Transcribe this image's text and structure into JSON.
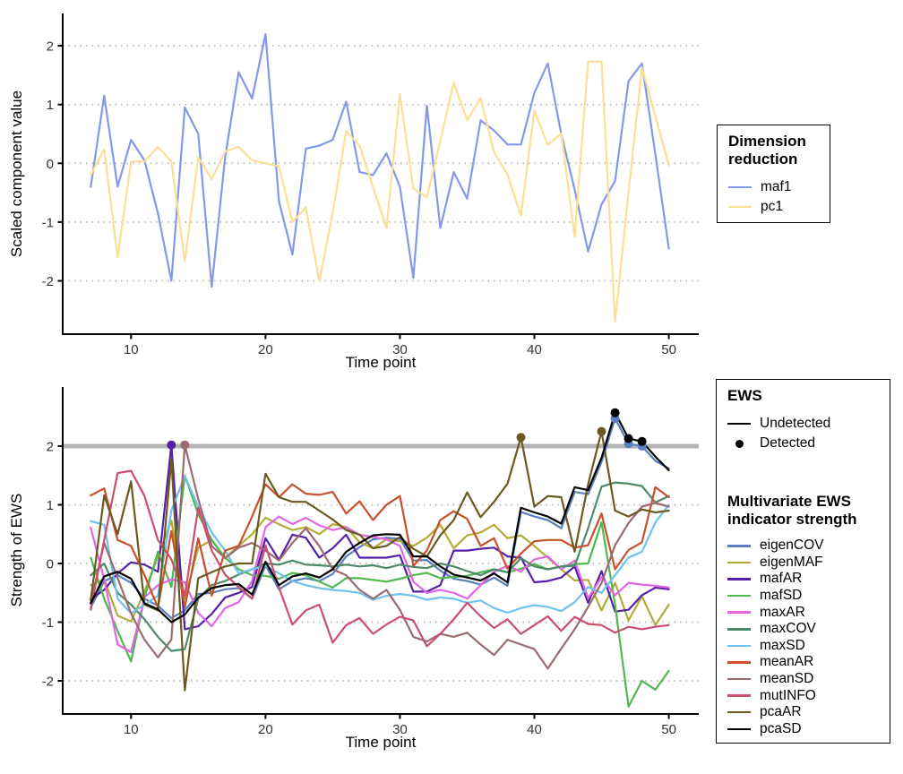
{
  "chart_data": [
    {
      "id": "dimension-reduction-timeseries",
      "type": "line",
      "xlabel": "Time point",
      "ylabel": "Scaled component value",
      "x_start": 7,
      "x_end": 50,
      "x_step": 1,
      "xticks": [
        10,
        20,
        30,
        40,
        50
      ],
      "yticks": [
        -2,
        -1,
        0,
        1,
        2
      ],
      "ylim": [
        -2.85,
        2.35
      ],
      "grid": "horizontal dotted",
      "legend_title": "Dimension reduction",
      "legend_position": "right",
      "series": [
        {
          "name": "maf1",
          "color": "#8398e8",
          "values": [
            -0.4,
            1.15,
            -0.4,
            0.4,
            0.05,
            -0.85,
            -2.0,
            0.95,
            0.5,
            -2.1,
            0.1,
            1.55,
            1.1,
            2.2,
            -0.65,
            -1.55,
            0.25,
            0.3,
            0.4,
            1.05,
            -0.15,
            -0.2,
            0.17,
            -0.4,
            -1.95,
            0.98,
            -1.1,
            -0.15,
            -0.6,
            0.73,
            0.56,
            0.32,
            0.32,
            1.2,
            1.7,
            0.5,
            -0.45,
            -1.5,
            -0.7,
            -0.3,
            1.4,
            1.7,
            0.15,
            -1.45
          ]
        },
        {
          "name": "pc1",
          "color": "#fbdf94",
          "values": [
            -0.2,
            0.24,
            -1.6,
            0.03,
            0.03,
            0.28,
            0.03,
            -1.67,
            0.1,
            -0.27,
            0.2,
            0.28,
            0.05,
            0.0,
            -0.05,
            -1.0,
            -0.75,
            -2.0,
            -0.85,
            0.55,
            0.3,
            -0.4,
            -1.1,
            1.18,
            -0.43,
            -0.58,
            0.38,
            1.37,
            0.73,
            1.11,
            0.19,
            -0.19,
            -0.89,
            0.9,
            0.31,
            0.51,
            -1.25,
            1.73,
            1.73,
            -2.7,
            -0.5,
            1.63,
            0.8,
            -0.03
          ]
        }
      ]
    },
    {
      "id": "multivariate-ews-strength",
      "type": "line",
      "xlabel": "Time point",
      "ylabel": "Strength of EWS",
      "x_start": 7,
      "x_end": 50,
      "x_step": 1,
      "xticks": [
        10,
        20,
        30,
        40,
        50
      ],
      "yticks": [
        -2,
        -1,
        0,
        1,
        2
      ],
      "ylim": [
        -2.75,
        2.85
      ],
      "grid": "horizontal dotted",
      "threshold": {
        "y": 2,
        "color": "#b3b3b3"
      },
      "legend_title": "Multivariate EWS indicator strength",
      "ews_legend": {
        "title": "EWS",
        "undetected_label": "Undetected",
        "detected_label": "Detected"
      },
      "series": [
        {
          "name": "eigenCOV",
          "color": "#5b7fc0",
          "detected": [
            46,
            47,
            48
          ],
          "values": [
            -0.75,
            -0.3,
            -0.2,
            -0.33,
            -0.6,
            -0.72,
            -0.93,
            -0.8,
            -0.52,
            -0.5,
            -0.44,
            -0.42,
            -0.6,
            -0.03,
            -0.44,
            -0.3,
            -0.25,
            -0.3,
            -0.18,
            0.12,
            0.28,
            0.41,
            0.44,
            0.42,
            0.05,
            0.06,
            -0.12,
            -0.26,
            -0.3,
            -0.36,
            -0.24,
            -0.38,
            0.88,
            0.8,
            0.74,
            0.6,
            1.22,
            1.18,
            1.73,
            2.47,
            2.04,
            2.0,
            1.75,
            1.62
          ]
        },
        {
          "name": "eigenMAF",
          "color": "#b3ab38",
          "detected": [],
          "values": [
            -0.37,
            -0.27,
            -0.89,
            -0.99,
            -0.48,
            0.12,
            0.73,
            -0.6,
            0.27,
            0.4,
            0.1,
            0.3,
            0.5,
            0.78,
            0.67,
            0.57,
            0.62,
            0.5,
            0.67,
            0.62,
            0.36,
            0.26,
            0.41,
            0.38,
            0.3,
            0.44,
            0.66,
            0.26,
            0.48,
            0.53,
            0.66,
            0.43,
            0.48,
            0.3,
            0.1,
            -0.1,
            -0.29,
            -0.28,
            -0.8,
            -0.33,
            -0.97,
            -0.56,
            -1.05,
            -0.7
          ]
        },
        {
          "name": "mafAR",
          "color": "#5520a8",
          "detected": [
            13
          ],
          "values": [
            -0.61,
            -0.45,
            -0.17,
            0.02,
            -0.02,
            -0.14,
            2.02,
            -1.12,
            -1.07,
            -0.86,
            -0.58,
            -0.5,
            -0.4,
            0.43,
            0.06,
            0.49,
            0.44,
            0.1,
            0.26,
            0.49,
            0.1,
            0.1,
            0.1,
            0.14,
            -0.48,
            -0.48,
            -0.37,
            0.22,
            0.22,
            0.25,
            0.27,
            0.12,
            0.1,
            -0.32,
            -0.3,
            -0.24,
            -0.05,
            -0.67,
            -0.13,
            -0.82,
            -0.79,
            -0.54,
            -0.41,
            -0.44
          ]
        },
        {
          "name": "mafSD",
          "color": "#4fb84f",
          "detected": [],
          "values": [
            0.1,
            -0.6,
            -1.15,
            -1.67,
            -0.58,
            0.2,
            -0.4,
            1.5,
            0.84,
            0.4,
            0.1,
            -0.1,
            -0.2,
            -0.21,
            -0.26,
            -0.16,
            -0.2,
            -0.31,
            -0.41,
            -0.25,
            -0.25,
            -0.28,
            -0.31,
            -0.26,
            -0.2,
            -0.16,
            -0.25,
            -0.23,
            -0.21,
            -0.15,
            -0.1,
            -0.15,
            -0.09,
            -0.01,
            -0.1,
            -0.05,
            -0.01,
            0.0,
            0.7,
            -0.7,
            -2.44,
            -2.0,
            -2.15,
            -1.83
          ]
        },
        {
          "name": "maxAR",
          "color": "#e266e6",
          "detected": [],
          "values": [
            0.61,
            -0.27,
            -1.38,
            -1.51,
            -0.58,
            -0.37,
            -0.27,
            -0.32,
            -0.84,
            -1.07,
            -0.76,
            -0.66,
            -0.3,
            0.62,
            0.8,
            0.67,
            0.78,
            0.65,
            0.57,
            0.62,
            0.49,
            0.45,
            0.41,
            0.3,
            -0.31,
            -0.5,
            -0.45,
            -0.5,
            -0.6,
            -0.37,
            -0.14,
            -0.04,
            -0.14,
            0.07,
            0.12,
            -0.1,
            0.05,
            -0.59,
            -0.23,
            -0.54,
            -0.33,
            -0.36,
            -0.38,
            -0.41
          ]
        },
        {
          "name": "maxCOV",
          "color": "#4e8a68",
          "detected": [],
          "values": [
            -0.2,
            0.0,
            -0.5,
            -0.7,
            -0.95,
            -1.25,
            -1.49,
            -1.46,
            -0.6,
            -0.37,
            -0.3,
            -0.19,
            -0.1,
            0.0,
            -0.02,
            0.05,
            -0.02,
            -0.03,
            -0.05,
            -0.02,
            -0.05,
            -0.03,
            -0.08,
            -0.02,
            -0.06,
            -0.08,
            0.0,
            -0.05,
            -0.13,
            -0.2,
            -0.1,
            -0.15,
            0.09,
            -0.05,
            -0.1,
            -0.05,
            -0.04,
            0.6,
            1.31,
            1.38,
            1.36,
            1.32,
            1.04,
            1.15
          ]
        },
        {
          "name": "maxSD",
          "color": "#6ec2ee",
          "detected": [],
          "values": [
            0.72,
            0.66,
            -0.6,
            -0.85,
            -0.7,
            -0.55,
            0.9,
            1.49,
            0.97,
            0.53,
            0.22,
            -0.17,
            -0.1,
            -0.04,
            -0.17,
            -0.3,
            -0.37,
            -0.42,
            -0.45,
            -0.47,
            -0.5,
            -0.62,
            -0.55,
            -0.52,
            -0.55,
            -0.62,
            -0.58,
            -0.6,
            -0.67,
            -0.63,
            -0.76,
            -0.84,
            -0.76,
            -0.71,
            -0.74,
            -0.81,
            -0.66,
            -0.4,
            -0.5,
            -0.2,
            0.1,
            0.2,
            0.7,
            1.0
          ]
        },
        {
          "name": "meanAR",
          "color": "#c8502a",
          "detected": [],
          "values": [
            1.16,
            1.28,
            0.4,
            0.3,
            -0.2,
            -0.75,
            0.55,
            -0.75,
            0.43,
            -0.55,
            0.22,
            0.3,
            0.8,
            1.35,
            1.13,
            1.35,
            1.19,
            1.17,
            1.22,
            0.85,
            1.06,
            0.74,
            1.0,
            1.15,
            -0.04,
            0.22,
            0.74,
            0.89,
            0.76,
            0.3,
            0.43,
            -0.09,
            0.17,
            0.38,
            0.4,
            0.4,
            0.27,
            0.31,
            0.85,
            -0.1,
            0.23,
            0.36,
            1.3,
            1.13
          ]
        },
        {
          "name": "meanSD",
          "color": "#9c6b70",
          "detected": [
            14
          ],
          "values": [
            -0.68,
            0.35,
            -0.25,
            -0.85,
            -1.3,
            -1.6,
            -1.3,
            2.02,
            1.1,
            0.3,
            0.09,
            0.27,
            0.35,
            0.22,
            0.05,
            0.35,
            0.6,
            0.3,
            -0.1,
            -0.2,
            -0.45,
            -0.6,
            -0.45,
            -0.79,
            -1.25,
            -1.33,
            -1.2,
            -1.25,
            -1.18,
            -1.38,
            -1.56,
            -1.3,
            -1.38,
            -1.46,
            -1.79,
            -1.45,
            -1.12,
            -0.74,
            -0.33,
            0.31,
            0.69,
            0.97,
            1.03,
            0.97
          ]
        },
        {
          "name": "mutINFO",
          "color": "#cb4f6e",
          "detected": [],
          "values": [
            -0.79,
            0.4,
            1.54,
            1.58,
            1.15,
            0.4,
            0.07,
            -0.55,
            0.95,
            0.22,
            -0.19,
            -0.4,
            -0.6,
            0.31,
            -0.41,
            -1.04,
            -0.8,
            -0.7,
            -1.35,
            -1.05,
            -0.93,
            -1.2,
            -1.04,
            -0.91,
            -0.97,
            -1.41,
            -1.2,
            -0.95,
            -0.67,
            -0.9,
            -1.1,
            -0.95,
            -1.2,
            -1.05,
            -0.9,
            -1.15,
            -0.91,
            -1.03,
            -1.05,
            -1.18,
            -1.08,
            -1.12,
            -1.08,
            -1.05
          ]
        },
        {
          "name": "pcaAR",
          "color": "#6a5a22",
          "detected": [
            39,
            45
          ],
          "values": [
            -0.63,
            1.16,
            0.5,
            1.4,
            -0.7,
            -0.8,
            1.78,
            -2.16,
            -0.25,
            -0.15,
            -0.05,
            0.0,
            0.0,
            1.53,
            1.13,
            1.05,
            1.05,
            0.9,
            0.75,
            0.57,
            0.49,
            0.26,
            0.3,
            0.45,
            0.25,
            0.12,
            0.48,
            0.74,
            1.21,
            0.79,
            1.05,
            1.36,
            2.15,
            0.97,
            1.15,
            1.13,
            0.2,
            1.35,
            2.25,
            0.9,
            0.8,
            0.92,
            0.87,
            0.9
          ]
        },
        {
          "name": "pcaSD",
          "color": "#000000",
          "detected": [
            46,
            47,
            48
          ],
          "values": [
            -0.68,
            -0.22,
            -0.14,
            -0.26,
            -0.68,
            -0.78,
            -1.0,
            -0.87,
            -0.58,
            -0.42,
            -0.37,
            -0.35,
            -0.53,
            0.03,
            -0.37,
            -0.22,
            -0.17,
            -0.24,
            -0.1,
            0.2,
            0.35,
            0.48,
            0.5,
            0.49,
            0.12,
            0.12,
            -0.05,
            -0.19,
            -0.24,
            -0.29,
            -0.17,
            -0.32,
            0.95,
            0.87,
            0.8,
            0.68,
            1.3,
            1.25,
            1.8,
            2.57,
            2.13,
            2.08,
            1.82,
            1.59
          ]
        }
      ]
    }
  ],
  "style": {
    "gridline_color": "#c0c0c0",
    "axis_color": "#000000",
    "tick_label_color": "#333333",
    "threshold_color": "#b3b3b3",
    "background": "#ffffff"
  }
}
